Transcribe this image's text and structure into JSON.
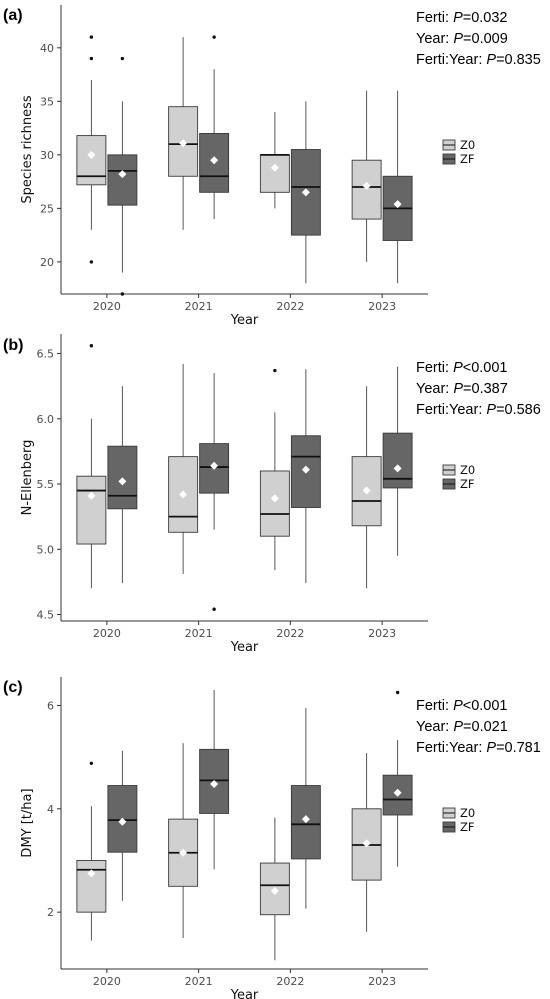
{
  "chart_data": [
    {
      "type": "box",
      "panel_label": "(a)",
      "xlabel": "Year",
      "ylabel": "Species richness",
      "categories": [
        "2020",
        "2021",
        "2022",
        "2023"
      ],
      "ylim": [
        17,
        44
      ],
      "yticks": [
        20,
        25,
        30,
        35,
        40
      ],
      "stats": [
        {
          "prefix": "Ferti: ",
          "p": "P",
          "suffix": "=0.032"
        },
        {
          "prefix": "Year: ",
          "p": "P",
          "suffix": "=0.009"
        },
        {
          "prefix": "Ferti:Year: ",
          "p": "P",
          "suffix": "=0.835"
        }
      ],
      "legend": [
        {
          "name": "Z0",
          "color": "#d0d0d0"
        },
        {
          "name": "ZF",
          "color": "#666666"
        }
      ],
      "series": [
        {
          "name": "Z0",
          "color": "#d0d0d0",
          "boxes": [
            {
              "min": 23,
              "q1": 27.2,
              "median": 28,
              "q3": 31.8,
              "max": 37,
              "mean": 30,
              "outliers": [
                41,
                39,
                20
              ]
            },
            {
              "min": 23,
              "q1": 28,
              "median": 31,
              "q3": 34.5,
              "max": 41,
              "mean": 31.1,
              "outliers": []
            },
            {
              "min": 25,
              "q1": 26.5,
              "median": 30,
              "q3": 30,
              "max": 34,
              "mean": 28.8,
              "outliers": []
            },
            {
              "min": 20,
              "q1": 24,
              "median": 27,
              "q3": 29.5,
              "max": 36,
              "mean": 27.1,
              "outliers": []
            }
          ]
        },
        {
          "name": "ZF",
          "color": "#666666",
          "boxes": [
            {
              "min": 19,
              "q1": 25.3,
              "median": 28.5,
              "q3": 30,
              "max": 35,
              "mean": 28.2,
              "outliers": [
                39,
                17
              ]
            },
            {
              "min": 24,
              "q1": 26.5,
              "median": 28,
              "q3": 32,
              "max": 38,
              "mean": 29.5,
              "outliers": [
                41
              ]
            },
            {
              "min": 18,
              "q1": 22.5,
              "median": 27,
              "q3": 30.5,
              "max": 35,
              "mean": 26.5,
              "outliers": []
            },
            {
              "min": 18,
              "q1": 22,
              "median": 25,
              "q3": 28,
              "max": 36,
              "mean": 25.4,
              "outliers": []
            }
          ]
        }
      ]
    },
    {
      "type": "box",
      "panel_label": "(b)",
      "xlabel": "Year",
      "ylabel": "N-Ellenberg",
      "categories": [
        "2020",
        "2021",
        "2022",
        "2023"
      ],
      "ylim": [
        4.45,
        6.65
      ],
      "yticks": [
        4.5,
        5.0,
        5.5,
        6.0,
        6.5
      ],
      "stats": [
        {
          "prefix": "Ferti: ",
          "p": "P",
          "suffix": "<0.001"
        },
        {
          "prefix": "Year: ",
          "p": "P",
          "suffix": "=0.387"
        },
        {
          "prefix": "Ferti:Year: ",
          "p": "P",
          "suffix": "=0.586"
        }
      ],
      "legend": [
        {
          "name": "Z0",
          "color": "#d0d0d0"
        },
        {
          "name": "ZF",
          "color": "#666666"
        }
      ],
      "series": [
        {
          "name": "Z0",
          "color": "#d0d0d0",
          "boxes": [
            {
              "min": 4.7,
              "q1": 5.04,
              "median": 5.45,
              "q3": 5.56,
              "max": 6.0,
              "mean": 5.41,
              "outliers": [
                6.56
              ]
            },
            {
              "min": 4.81,
              "q1": 5.13,
              "median": 5.25,
              "q3": 5.71,
              "max": 6.42,
              "mean": 5.42,
              "outliers": []
            },
            {
              "min": 4.84,
              "q1": 5.1,
              "median": 5.27,
              "q3": 5.6,
              "max": 6.05,
              "mean": 5.39,
              "outliers": [
                6.37
              ]
            },
            {
              "min": 4.7,
              "q1": 5.18,
              "median": 5.37,
              "q3": 5.71,
              "max": 6.25,
              "mean": 5.45,
              "outliers": []
            }
          ]
        },
        {
          "name": "ZF",
          "color": "#666666",
          "boxes": [
            {
              "min": 4.74,
              "q1": 5.31,
              "median": 5.41,
              "q3": 5.79,
              "max": 6.25,
              "mean": 5.52,
              "outliers": []
            },
            {
              "min": 5.15,
              "q1": 5.43,
              "median": 5.63,
              "q3": 5.81,
              "max": 6.35,
              "mean": 5.64,
              "outliers": [
                4.54
              ]
            },
            {
              "min": 4.74,
              "q1": 5.32,
              "median": 5.71,
              "q3": 5.87,
              "max": 6.38,
              "mean": 5.61,
              "outliers": []
            },
            {
              "min": 4.95,
              "q1": 5.47,
              "median": 5.54,
              "q3": 5.89,
              "max": 6.4,
              "mean": 5.62,
              "outliers": []
            }
          ]
        }
      ]
    },
    {
      "type": "box",
      "panel_label": "(c)",
      "xlabel": "Year",
      "ylabel": "DMY [t/ha]",
      "categories": [
        "2020",
        "2021",
        "2022",
        "2023"
      ],
      "ylim": [
        0.9,
        6.55
      ],
      "yticks": [
        2,
        4,
        6
      ],
      "stats": [
        {
          "prefix": "Ferti: ",
          "p": "P",
          "suffix": "<0.001"
        },
        {
          "prefix": "Year: ",
          "p": "P",
          "suffix": "=0.021"
        },
        {
          "prefix": "Ferti:Year: ",
          "p": "P",
          "suffix": "=0.781"
        }
      ],
      "legend": [
        {
          "name": "Z0",
          "color": "#d0d0d0"
        },
        {
          "name": "ZF",
          "color": "#666666"
        }
      ],
      "series": [
        {
          "name": "Z0",
          "color": "#d0d0d0",
          "boxes": [
            {
              "min": 1.45,
              "q1": 2.0,
              "median": 2.82,
              "q3": 3.0,
              "max": 4.05,
              "mean": 2.75,
              "outliers": [
                4.88
              ]
            },
            {
              "min": 1.5,
              "q1": 2.5,
              "median": 3.15,
              "q3": 3.8,
              "max": 5.27,
              "mean": 3.15,
              "outliers": []
            },
            {
              "min": 1.07,
              "q1": 1.95,
              "median": 2.52,
              "q3": 2.95,
              "max": 3.83,
              "mean": 2.41,
              "outliers": []
            },
            {
              "min": 1.62,
              "q1": 2.62,
              "median": 3.3,
              "q3": 4.0,
              "max": 5.08,
              "mean": 3.33,
              "outliers": []
            }
          ]
        },
        {
          "name": "ZF",
          "color": "#666666",
          "boxes": [
            {
              "min": 2.22,
              "q1": 3.16,
              "median": 3.78,
              "q3": 4.45,
              "max": 5.12,
              "mean": 3.75,
              "outliers": []
            },
            {
              "min": 2.83,
              "q1": 3.91,
              "median": 4.55,
              "q3": 5.15,
              "max": 6.3,
              "mean": 4.48,
              "outliers": []
            },
            {
              "min": 2.07,
              "q1": 3.03,
              "median": 3.7,
              "q3": 4.45,
              "max": 5.95,
              "mean": 3.8,
              "outliers": []
            },
            {
              "min": 2.88,
              "q1": 3.88,
              "median": 4.18,
              "q3": 4.65,
              "max": 5.33,
              "mean": 4.31,
              "outliers": [
                6.25
              ]
            }
          ]
        }
      ]
    }
  ]
}
